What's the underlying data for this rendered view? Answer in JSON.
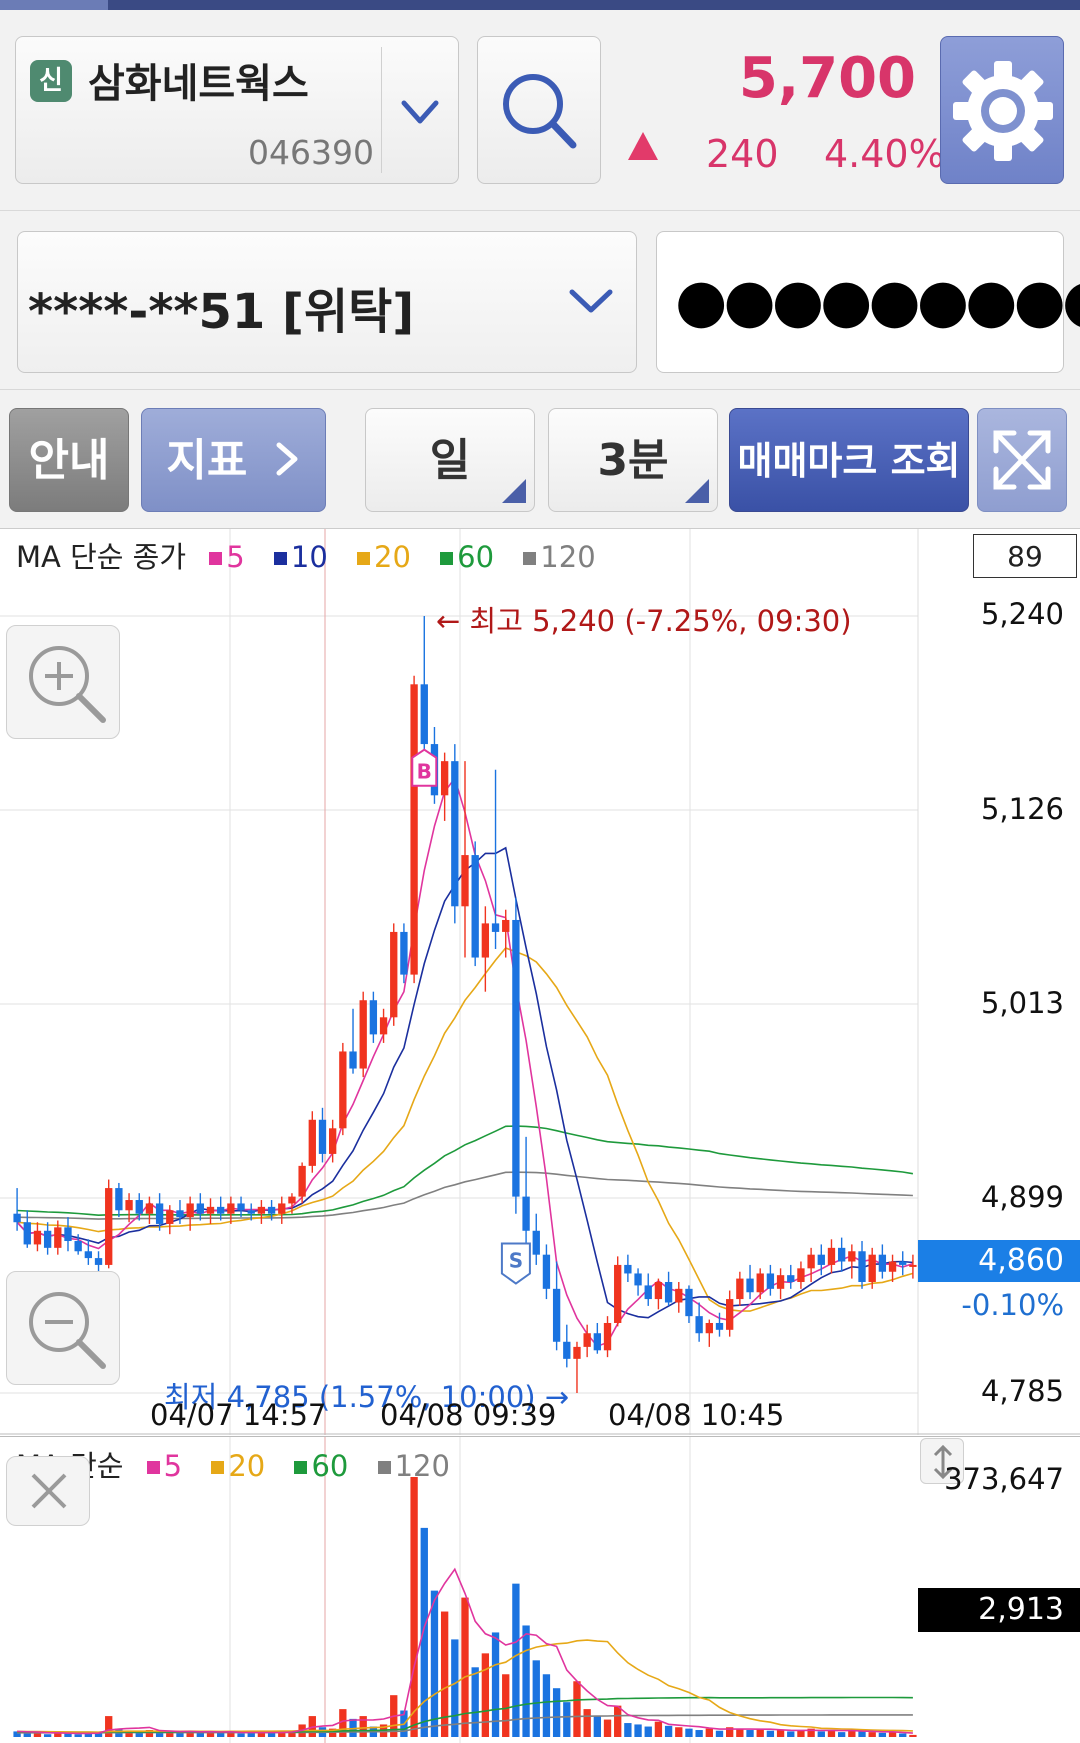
{
  "header": {
    "stock_badge": "신",
    "stock_name": "삼화네트웍스",
    "stock_code": "046390",
    "price": "5,700",
    "change": "240",
    "change_pct": "4.40%",
    "up_color": "#d8356a"
  },
  "account": {
    "number": "****-**51 [위탁]",
    "password_mask": "●●●●●●●●●"
  },
  "toolbar": {
    "guide": "안내",
    "indicator": "지표",
    "period": "일",
    "interval": "3분",
    "trade_mark": "매매마크 조회"
  },
  "price_chart": {
    "legend_title": "MA 단순 종가",
    "ma": [
      {
        "label": "5",
        "color": "#e0359e"
      },
      {
        "label": "10",
        "color": "#1b2f9e"
      },
      {
        "label": "20",
        "color": "#e6a817"
      },
      {
        "label": "60",
        "color": "#1e9a3c"
      },
      {
        "label": "120",
        "color": "#808080"
      }
    ],
    "count": "89",
    "y_labels": [
      "5,240",
      "5,126",
      "5,013",
      "4,899",
      "4,785"
    ],
    "current_price": "4,860",
    "current_pct": "-0.10%",
    "high_annotation": "← 최고 5,240 (-7.25%, 09:30)",
    "low_annotation": "최저 4,785 (1.57%, 10:00) →",
    "x_labels": [
      "04/07 14:57",
      "04/08 09:39",
      "04/08 10:45"
    ],
    "buy_mark": "B",
    "sell_mark": "S"
  },
  "volume_chart": {
    "legend_title": "MA 단순",
    "ma": [
      {
        "label": "5",
        "color": "#e0359e"
      },
      {
        "label": "20",
        "color": "#e6a817"
      },
      {
        "label": "60",
        "color": "#1e9a3c"
      },
      {
        "label": "120",
        "color": "#808080"
      }
    ],
    "max_label": "373,647",
    "current_label": "2,913"
  },
  "chart_data": {
    "type": "candlestick",
    "title": "",
    "y_range": [
      4785,
      5240
    ],
    "x_ticks": [
      "04/07 14:57",
      "04/08 09:39",
      "04/08 10:45"
    ],
    "candles": [
      [
        4890,
        4905,
        4880,
        4885
      ],
      [
        4885,
        4892,
        4870,
        4872
      ],
      [
        4872,
        4885,
        4868,
        4880
      ],
      [
        4880,
        4885,
        4866,
        4870
      ],
      [
        4870,
        4886,
        4866,
        4882
      ],
      [
        4882,
        4888,
        4868,
        4874
      ],
      [
        4874,
        4878,
        4866,
        4868
      ],
      [
        4868,
        4875,
        4860,
        4864
      ],
      [
        4864,
        4868,
        4856,
        4860
      ],
      [
        4860,
        4910,
        4858,
        4905
      ],
      [
        4905,
        4908,
        4888,
        4892
      ],
      [
        4892,
        4902,
        4885,
        4898
      ],
      [
        4898,
        4902,
        4886,
        4890
      ],
      [
        4890,
        4900,
        4884,
        4896
      ],
      [
        4896,
        4902,
        4880,
        4884
      ],
      [
        4884,
        4895,
        4878,
        4892
      ],
      [
        4892,
        4898,
        4884,
        4888
      ],
      [
        4888,
        4900,
        4880,
        4896
      ],
      [
        4896,
        4902,
        4886,
        4890
      ],
      [
        4890,
        4899,
        4884,
        4894
      ],
      [
        4894,
        4900,
        4886,
        4890
      ],
      [
        4890,
        4900,
        4884,
        4896
      ],
      [
        4896,
        4900,
        4888,
        4892
      ],
      [
        4892,
        4896,
        4886,
        4890
      ],
      [
        4890,
        4898,
        4884,
        4894
      ],
      [
        4894,
        4898,
        4886,
        4890
      ],
      [
        4890,
        4900,
        4884,
        4896
      ],
      [
        4896,
        4902,
        4890,
        4900
      ],
      [
        4900,
        4920,
        4896,
        4918
      ],
      [
        4918,
        4950,
        4914,
        4945
      ],
      [
        4945,
        4952,
        4920,
        4925
      ],
      [
        4925,
        4945,
        4920,
        4940
      ],
      [
        4940,
        4990,
        4936,
        4985
      ],
      [
        4985,
        5010,
        4972,
        4975
      ],
      [
        4975,
        5020,
        4970,
        5015
      ],
      [
        5015,
        5020,
        4990,
        4995
      ],
      [
        4995,
        5010,
        4990,
        5005
      ],
      [
        5005,
        5060,
        5000,
        5055
      ],
      [
        5055,
        5060,
        5025,
        5030
      ],
      [
        5030,
        5205,
        5025,
        5200
      ],
      [
        5200,
        5240,
        5160,
        5165
      ],
      [
        5165,
        5175,
        5130,
        5135
      ],
      [
        5135,
        5160,
        5120,
        5155
      ],
      [
        5155,
        5165,
        5060,
        5070
      ],
      [
        5070,
        5155,
        5040,
        5100
      ],
      [
        5100,
        5108,
        5035,
        5040
      ],
      [
        5040,
        5070,
        5020,
        5060
      ],
      [
        5060,
        5150,
        5045,
        5055
      ],
      [
        5055,
        5068,
        5040,
        5062
      ],
      [
        5062,
        5075,
        4890,
        4900
      ],
      [
        4900,
        4935,
        4865,
        4880
      ],
      [
        4880,
        4890,
        4860,
        4866
      ],
      [
        4866,
        4872,
        4840,
        4846
      ],
      [
        4846,
        4862,
        4810,
        4815
      ],
      [
        4815,
        4825,
        4800,
        4805
      ],
      [
        4805,
        4815,
        4785,
        4812
      ],
      [
        4812,
        4825,
        4806,
        4820
      ],
      [
        4820,
        4826,
        4808,
        4810
      ],
      [
        4810,
        4830,
        4806,
        4826
      ],
      [
        4826,
        4865,
        4824,
        4860
      ],
      [
        4860,
        4866,
        4850,
        4855
      ],
      [
        4855,
        4858,
        4842,
        4848
      ],
      [
        4848,
        4855,
        4836,
        4840
      ],
      [
        4840,
        4852,
        4834,
        4850
      ],
      [
        4850,
        4856,
        4836,
        4838
      ],
      [
        4838,
        4850,
        4832,
        4846
      ],
      [
        4846,
        4848,
        4826,
        4830
      ],
      [
        4830,
        4838,
        4815,
        4820
      ],
      [
        4820,
        4828,
        4812,
        4826
      ],
      [
        4826,
        4832,
        4818,
        4822
      ],
      [
        4822,
        4845,
        4818,
        4840
      ],
      [
        4840,
        4856,
        4836,
        4852
      ],
      [
        4852,
        4860,
        4840,
        4844
      ],
      [
        4844,
        4858,
        4840,
        4855
      ],
      [
        4855,
        4860,
        4842,
        4846
      ],
      [
        4846,
        4858,
        4840,
        4854
      ],
      [
        4854,
        4860,
        4846,
        4850
      ],
      [
        4850,
        4862,
        4846,
        4858
      ],
      [
        4858,
        4870,
        4850,
        4866
      ],
      [
        4866,
        4872,
        4854,
        4860
      ],
      [
        4860,
        4875,
        4855,
        4870
      ],
      [
        4870,
        4876,
        4856,
        4862
      ],
      [
        4862,
        4872,
        4852,
        4868
      ],
      [
        4868,
        4874,
        4846,
        4850
      ],
      [
        4850,
        4870,
        4846,
        4866
      ],
      [
        4866,
        4872,
        4852,
        4856
      ],
      [
        4856,
        4866,
        4850,
        4862
      ],
      [
        4862,
        4868,
        4854,
        4860
      ],
      [
        4860,
        4866,
        4852,
        4860
      ]
    ],
    "volumes": [
      8,
      5,
      6,
      4,
      7,
      5,
      4,
      6,
      5,
      30,
      12,
      9,
      8,
      10,
      7,
      8,
      6,
      9,
      7,
      8,
      6,
      7,
      5,
      6,
      8,
      6,
      7,
      9,
      18,
      30,
      14,
      12,
      40,
      26,
      30,
      15,
      18,
      60,
      38,
      373,
      300,
      210,
      180,
      140,
      200,
      100,
      120,
      150,
      90,
      220,
      160,
      110,
      90,
      70,
      50,
      80,
      40,
      30,
      25,
      45,
      20,
      18,
      15,
      22,
      16,
      14,
      12,
      10,
      12,
      9,
      14,
      12,
      10,
      11,
      9,
      10,
      8,
      9,
      12,
      8,
      10,
      7,
      9,
      8,
      7,
      6,
      7,
      5,
      3
    ]
  }
}
